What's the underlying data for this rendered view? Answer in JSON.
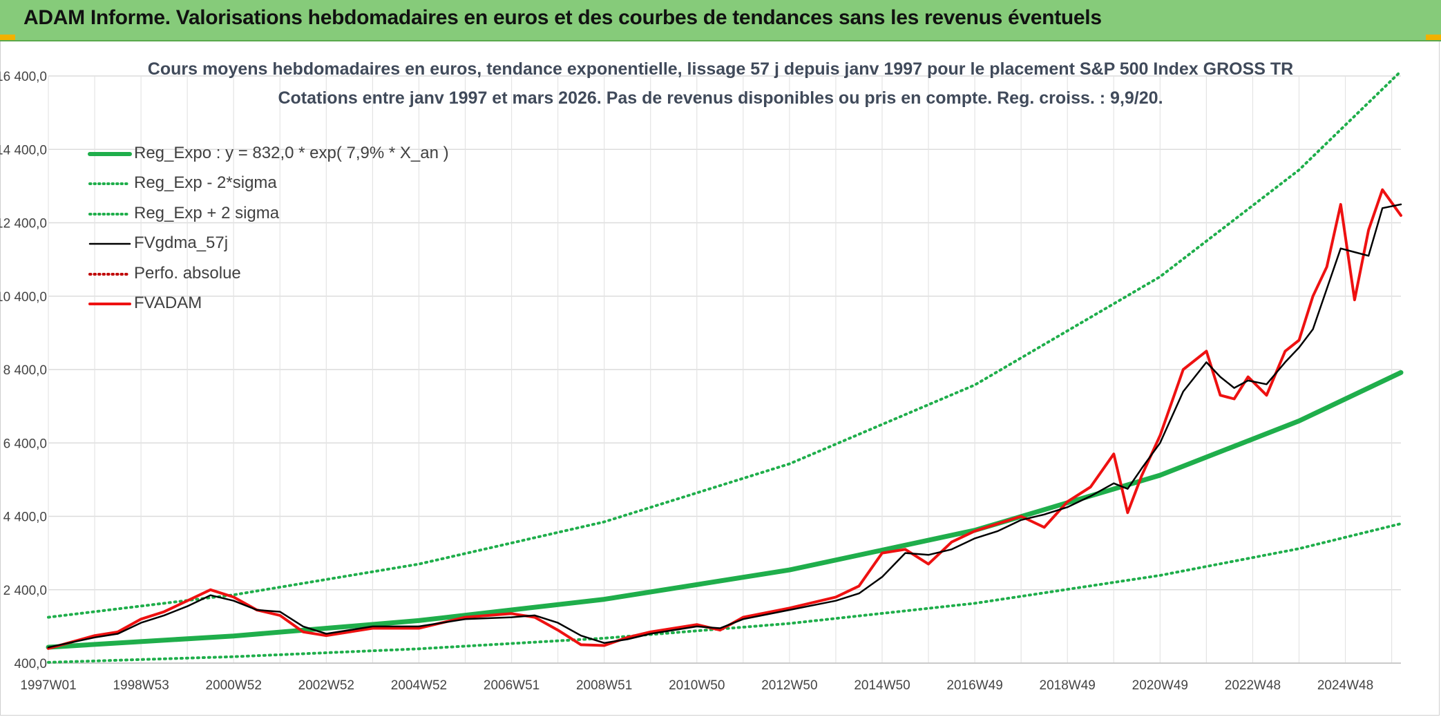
{
  "header": {
    "title": "ADAM Informe. Valorisations hebdomadaires en euros et des courbes de tendances sans les revenus éventuels"
  },
  "colors": {
    "header_bg": "#86cb7a",
    "trend_green": "#1fae4b",
    "price_red": "#ee1111",
    "smooth_black": "#000000",
    "perf_red": "#c00000"
  },
  "chart_data": {
    "type": "line",
    "title": "Cours moyens hebdomadaires en euros, tendance exponentielle, lissage 57 j depuis janv 1997 pour le placement S&P 500 Index GROSS TR",
    "subtitle": "Cotations entre janv 1997 et mars 2026. Pas de revenus disponibles ou pris en compte. Reg. croiss. : 9,9/20.",
    "xlabel": "",
    "ylabel": "",
    "ylim": [
      400,
      16400
    ],
    "xlim": [
      1997.0,
      2026.2
    ],
    "grid": true,
    "legend_position": "top-left",
    "y_ticks": [
      "400,0",
      "2 400,0",
      "4 400,0",
      "6 400,0",
      "8 400,0",
      "10 400,0",
      "12 400,0",
      "14 400,0",
      "16 400,0"
    ],
    "y_tick_values": [
      400,
      2400,
      4400,
      6400,
      8400,
      10400,
      12400,
      14400,
      16400
    ],
    "x_ticks": [
      "1997W01",
      "1998W53",
      "2000W52",
      "2002W52",
      "2004W52",
      "2006W51",
      "2008W51",
      "2010W50",
      "2012W50",
      "2014W50",
      "2016W49",
      "2018W49",
      "2020W49",
      "2022W48",
      "2024W48"
    ],
    "x_tick_values": [
      1997.0,
      1999.0,
      2001.0,
      2003.0,
      2005.0,
      2007.0,
      2009.0,
      2011.0,
      2013.0,
      2015.0,
      2017.0,
      2019.0,
      2021.0,
      2023.0,
      2025.0
    ],
    "series": [
      {
        "name": "Reg_Expo : y = 832,0 * exp( 7,9% *  X_an )",
        "style": "solid-thick",
        "color": "#1fae4b",
        "x": [
          1997.0,
          2001.0,
          2005.0,
          2009.0,
          2013.0,
          2017.0,
          2021.0,
          2024.0,
          2026.2
        ],
        "values": [
          832,
          1140,
          1560,
          2140,
          2940,
          4020,
          5520,
          7000,
          8320
        ]
      },
      {
        "name": "Reg_Exp - 2*sigma",
        "style": "dotted",
        "color": "#1fae4b",
        "x": [
          1997.0,
          2001.0,
          2005.0,
          2009.0,
          2013.0,
          2017.0,
          2021.0,
          2024.0,
          2026.2
        ],
        "values": [
          420,
          575,
          790,
          1080,
          1480,
          2030,
          2790,
          3520,
          4200
        ]
      },
      {
        "name": "Reg_Exp + 2 sigma",
        "style": "dotted",
        "color": "#1fae4b",
        "x": [
          1997.0,
          2001.0,
          2005.0,
          2009.0,
          2013.0,
          2017.0,
          2021.0,
          2024.0,
          2026.2
        ],
        "values": [
          1650,
          2260,
          3100,
          4250,
          5830,
          7980,
          10930,
          13840,
          16530
        ]
      },
      {
        "name": "FVgdma_57j",
        "style": "solid",
        "color": "#000000",
        "x": [
          1997.0,
          1998.0,
          1998.5,
          1999.0,
          1999.5,
          2000.0,
          2000.5,
          2001.0,
          2001.5,
          2002.0,
          2002.5,
          2003.0,
          2004.0,
          2005.0,
          2006.0,
          2007.0,
          2007.5,
          2008.0,
          2008.5,
          2009.0,
          2009.5,
          2010.0,
          2011.0,
          2011.5,
          2012.0,
          2013.0,
          2014.0,
          2014.5,
          2015.0,
          2015.5,
          2016.0,
          2016.5,
          2017.0,
          2017.5,
          2018.0,
          2018.5,
          2019.0,
          2019.5,
          2020.0,
          2020.3,
          2020.6,
          2021.0,
          2021.5,
          2022.0,
          2022.3,
          2022.6,
          2022.9,
          2023.3,
          2023.7,
          2024.0,
          2024.3,
          2024.6,
          2024.9,
          2025.2,
          2025.5,
          2025.8,
          2026.2
        ],
        "values": [
          830,
          1100,
          1200,
          1500,
          1700,
          1950,
          2250,
          2100,
          1850,
          1800,
          1400,
          1200,
          1400,
          1400,
          1600,
          1650,
          1700,
          1500,
          1150,
          950,
          1050,
          1200,
          1400,
          1350,
          1600,
          1850,
          2100,
          2300,
          2750,
          3400,
          3350,
          3500,
          3800,
          4000,
          4300,
          4450,
          4650,
          4950,
          5300,
          5150,
          5700,
          6400,
          7800,
          8600,
          8200,
          7900,
          8100,
          8000,
          8600,
          9000,
          9500,
          10600,
          11700,
          11600,
          11500,
          12800,
          12900
        ]
      },
      {
        "name": "Perfo. absolue",
        "style": "dotted",
        "color": "#c00000",
        "x": [],
        "values": []
      },
      {
        "name": "FVADAM",
        "style": "solid-thick",
        "color": "#ee1111",
        "x": [
          1997.0,
          1998.0,
          1998.5,
          1999.0,
          1999.5,
          2000.0,
          2000.5,
          2001.0,
          2001.5,
          2002.0,
          2002.5,
          2003.0,
          2004.0,
          2005.0,
          2006.0,
          2007.0,
          2007.5,
          2008.0,
          2008.5,
          2009.0,
          2009.5,
          2010.0,
          2011.0,
          2011.5,
          2012.0,
          2013.0,
          2014.0,
          2014.5,
          2015.0,
          2015.5,
          2016.0,
          2016.5,
          2017.0,
          2017.5,
          2018.0,
          2018.5,
          2019.0,
          2019.5,
          2020.0,
          2020.3,
          2020.6,
          2021.0,
          2021.5,
          2022.0,
          2022.3,
          2022.6,
          2022.9,
          2023.3,
          2023.7,
          2024.0,
          2024.3,
          2024.6,
          2024.9,
          2025.2,
          2025.5,
          2025.8,
          2026.2
        ],
        "values": [
          800,
          1150,
          1250,
          1600,
          1800,
          2100,
          2400,
          2200,
          1850,
          1700,
          1250,
          1150,
          1350,
          1350,
          1650,
          1750,
          1650,
          1300,
          900,
          880,
          1100,
          1250,
          1450,
          1300,
          1650,
          1900,
          2200,
          2500,
          3400,
          3500,
          3100,
          3700,
          4000,
          4200,
          4400,
          4100,
          4800,
          5200,
          6100,
          4500,
          5500,
          6600,
          8400,
          8900,
          7700,
          7600,
          8200,
          7700,
          8900,
          9200,
          10400,
          11200,
          12900,
          10300,
          12200,
          13300,
          12600
        ]
      }
    ]
  }
}
